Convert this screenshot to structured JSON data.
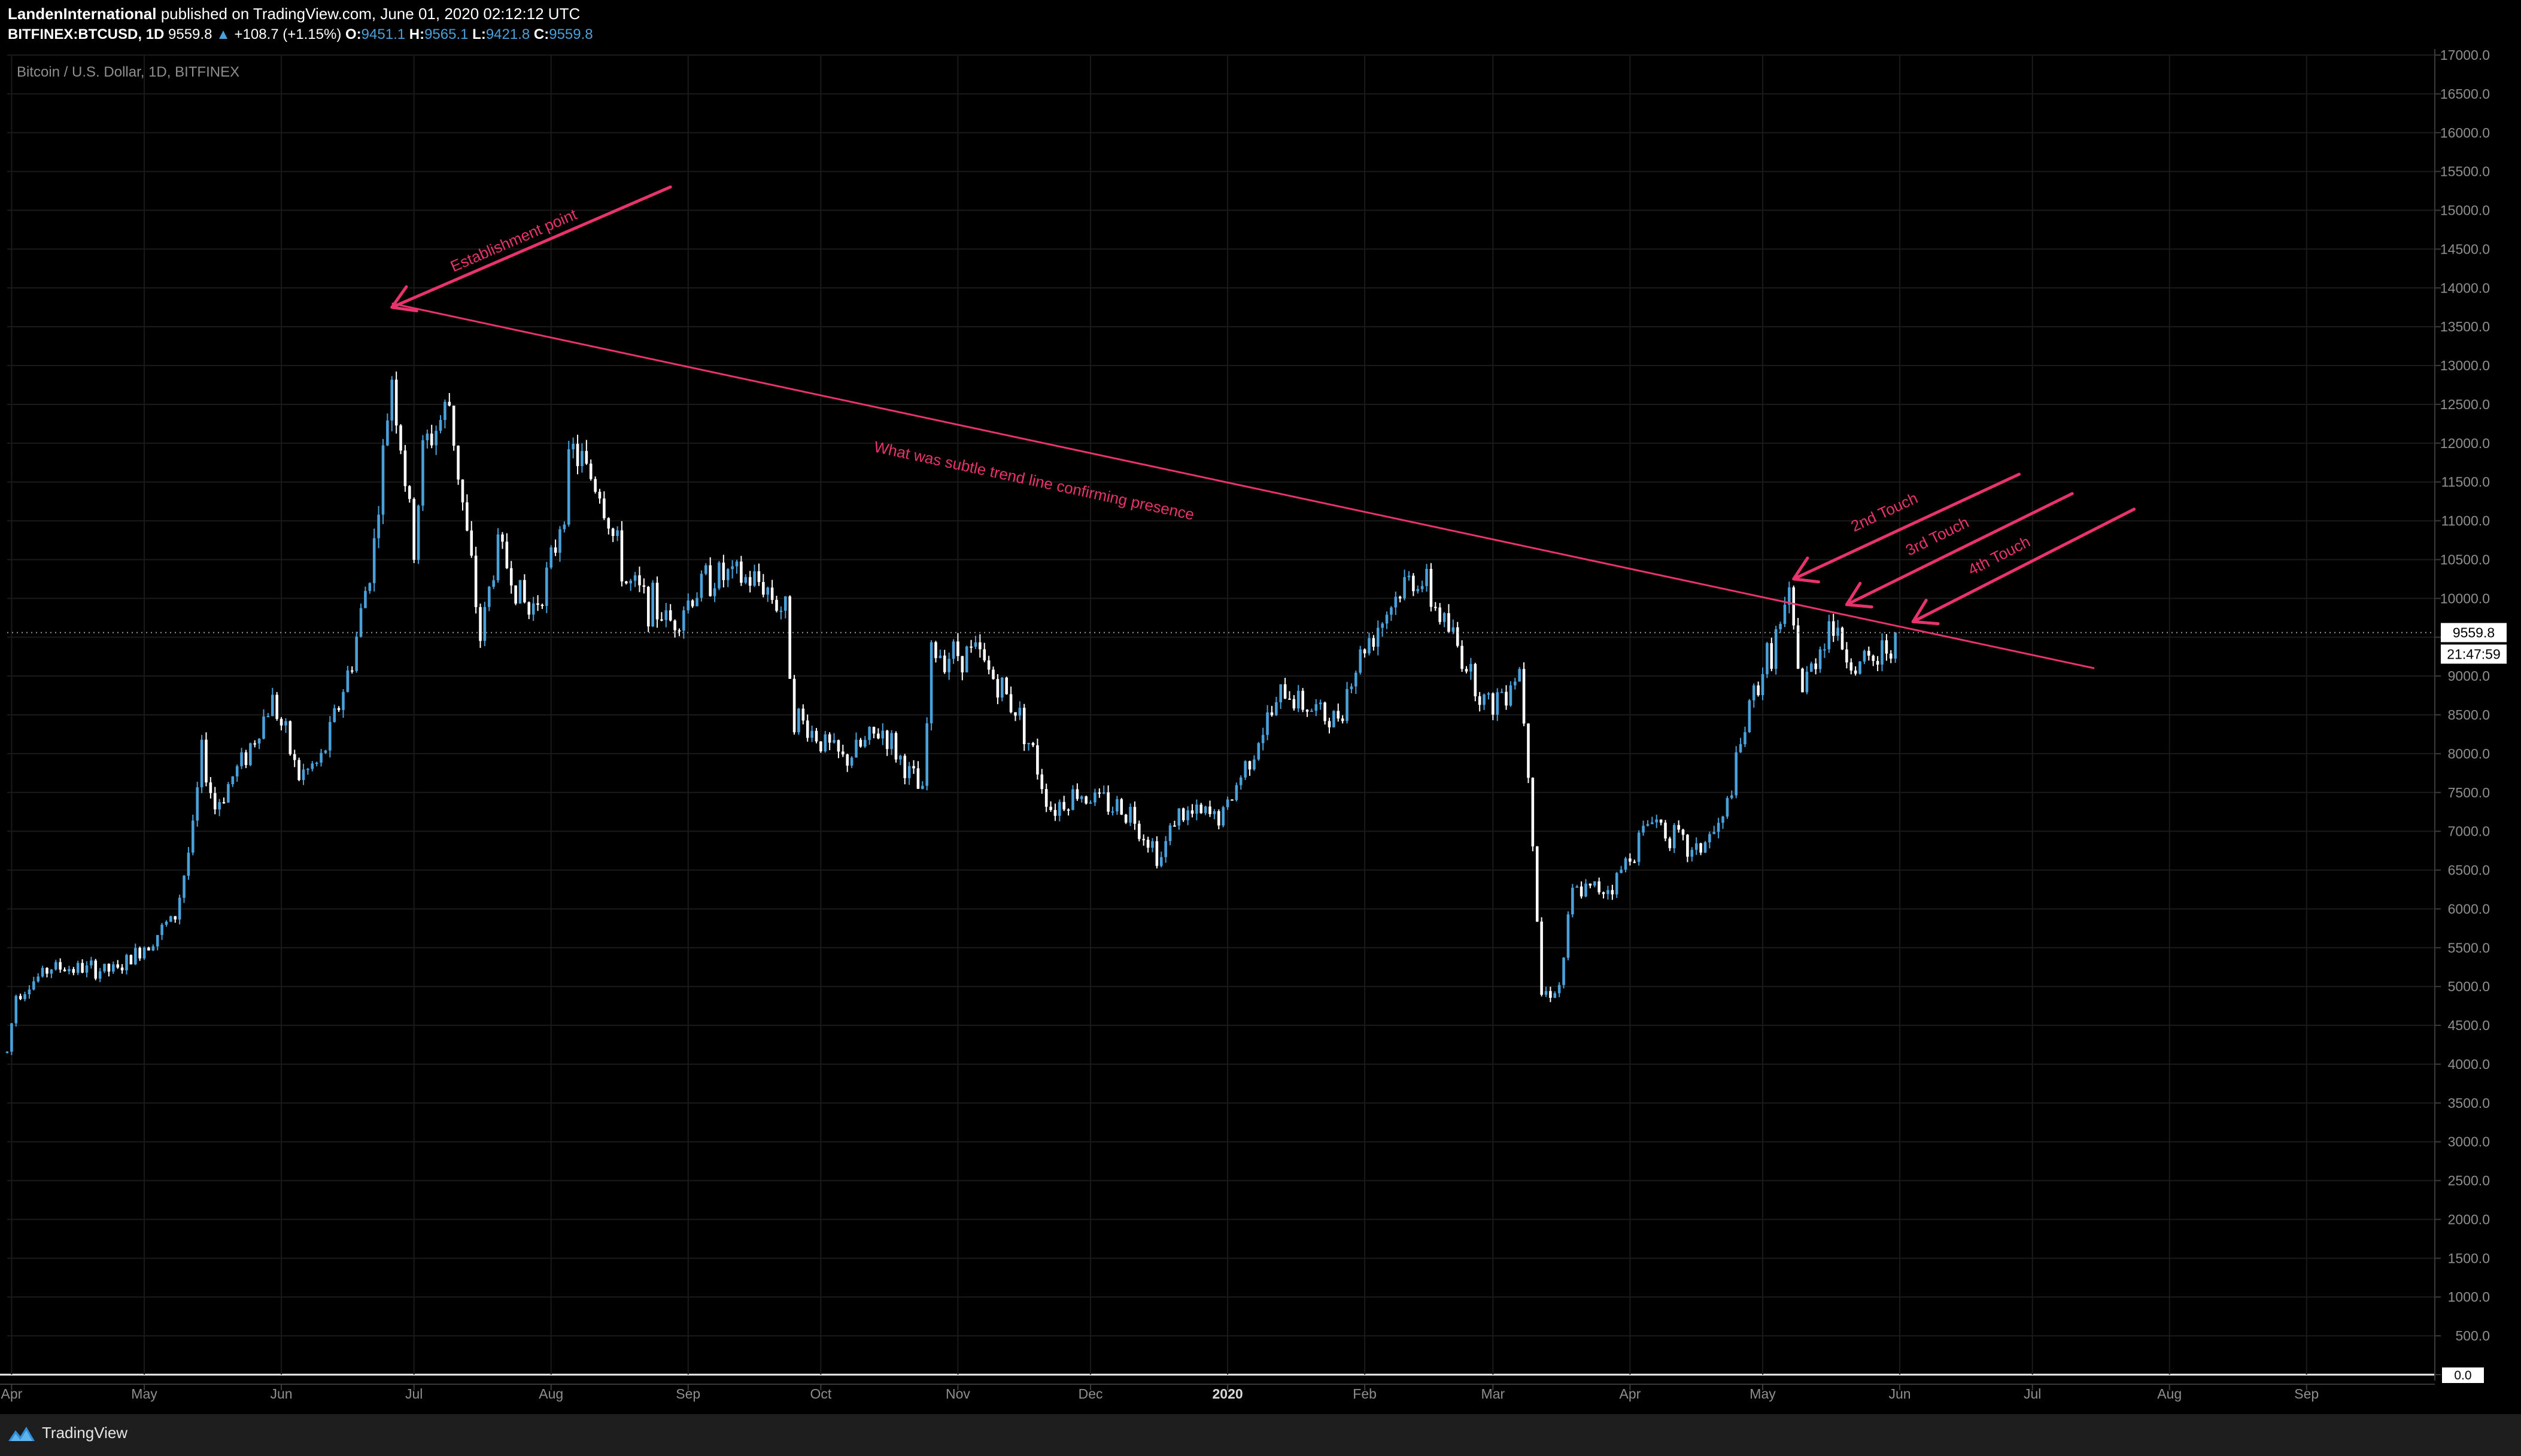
{
  "header": {
    "author": "LandenInternational",
    "published_text": "published on TradingView.com, June 01, 2020 02:12:12 UTC",
    "symbol": "BITFINEX:BTCUSD, 1D",
    "last_price": "9559.8",
    "change": "+108.7 (+1.15%)",
    "o_label": "O:",
    "o_value": "9451.1",
    "h_label": "H:",
    "h_value": "9565.1",
    "l_label": "L:",
    "l_value": "9421.8",
    "c_label": "C:",
    "c_value": "9559.8"
  },
  "footer": {
    "brand": "TradingView",
    "logo_icon": "tradingview-logo-icon"
  },
  "colors": {
    "background": "#000000",
    "candle_up": "#4aa0d8",
    "candle_down": "#ffffff",
    "annotation": "#e8336d",
    "grid": "#1a1a1a",
    "axis_text": "#8f8f8f"
  },
  "chart_data": {
    "type": "candlestick",
    "title": "Bitcoin / U.S. Dollar, 1D, BITFINEX",
    "xlabel": "",
    "ylabel": "",
    "ylim": [
      0,
      17000
    ],
    "y_ticks": [
      "0.0",
      "500.0",
      "1000.0",
      "1500.0",
      "2000.0",
      "2500.0",
      "3000.0",
      "3500.0",
      "4000.0",
      "4500.0",
      "5000.0",
      "5500.0",
      "6000.0",
      "6500.0",
      "7000.0",
      "7500.0",
      "8000.0",
      "8500.0",
      "9000.0",
      "9500.0",
      "10000.0",
      "10500.0",
      "11000.0",
      "11500.0",
      "12000.0",
      "12500.0",
      "13000.0",
      "13500.0",
      "14000.0",
      "14500.0",
      "15000.0",
      "15500.0",
      "16000.0",
      "16500.0",
      "17000.0"
    ],
    "x_range": [
      "2019-03-31",
      "2020-09-30"
    ],
    "x_ticks": [
      {
        "date": "2019-04-01",
        "label": "Apr"
      },
      {
        "date": "2019-05-01",
        "label": "May"
      },
      {
        "date": "2019-06-01",
        "label": "Jun"
      },
      {
        "date": "2019-07-01",
        "label": "Jul"
      },
      {
        "date": "2019-08-01",
        "label": "Aug"
      },
      {
        "date": "2019-09-01",
        "label": "Sep"
      },
      {
        "date": "2019-10-01",
        "label": "Oct"
      },
      {
        "date": "2019-11-01",
        "label": "Nov"
      },
      {
        "date": "2019-12-01",
        "label": "Dec"
      },
      {
        "date": "2020-01-01",
        "label": "2020",
        "bold": true
      },
      {
        "date": "2020-02-01",
        "label": "Feb"
      },
      {
        "date": "2020-03-01",
        "label": "Mar"
      },
      {
        "date": "2020-04-01",
        "label": "Apr"
      },
      {
        "date": "2020-05-01",
        "label": "May"
      },
      {
        "date": "2020-06-01",
        "label": "Jun"
      },
      {
        "date": "2020-07-01",
        "label": "Jul"
      },
      {
        "date": "2020-08-01",
        "label": "Aug"
      },
      {
        "date": "2020-09-01",
        "label": "Sep"
      }
    ],
    "price_path": [
      {
        "date": "2019-03-31",
        "close": 4150
      },
      {
        "date": "2019-04-02",
        "close": 4900
      },
      {
        "date": "2019-04-10",
        "close": 5250
      },
      {
        "date": "2019-04-25",
        "close": 5200
      },
      {
        "date": "2019-05-08",
        "close": 5900
      },
      {
        "date": "2019-05-12",
        "close": 7000
      },
      {
        "date": "2019-05-14",
        "close": 8000
      },
      {
        "date": "2019-05-17",
        "close": 7300
      },
      {
        "date": "2019-05-25",
        "close": 8100
      },
      {
        "date": "2019-05-30",
        "close": 8700
      },
      {
        "date": "2019-06-05",
        "close": 7700
      },
      {
        "date": "2019-06-10",
        "close": 7900
      },
      {
        "date": "2019-06-17",
        "close": 9200
      },
      {
        "date": "2019-06-22",
        "close": 10700
      },
      {
        "date": "2019-06-26",
        "close": 12900
      },
      {
        "date": "2019-07-01",
        "close": 10600
      },
      {
        "date": "2019-07-03",
        "close": 11900
      },
      {
        "date": "2019-07-09",
        "close": 12500
      },
      {
        "date": "2019-07-16",
        "close": 9500
      },
      {
        "date": "2019-07-20",
        "close": 10700
      },
      {
        "date": "2019-07-27",
        "close": 9800
      },
      {
        "date": "2019-08-01",
        "close": 10400
      },
      {
        "date": "2019-08-06",
        "close": 11900
      },
      {
        "date": "2019-08-12",
        "close": 11400
      },
      {
        "date": "2019-08-18",
        "close": 10200
      },
      {
        "date": "2019-08-28",
        "close": 9700
      },
      {
        "date": "2019-09-06",
        "close": 10300
      },
      {
        "date": "2019-09-18",
        "close": 10200
      },
      {
        "date": "2019-09-23",
        "close": 9800
      },
      {
        "date": "2019-09-25",
        "close": 8500
      },
      {
        "date": "2019-10-06",
        "close": 7900
      },
      {
        "date": "2019-10-15",
        "close": 8300
      },
      {
        "date": "2019-10-24",
        "close": 7450
      },
      {
        "date": "2019-10-26",
        "close": 9300
      },
      {
        "date": "2019-11-05",
        "close": 9300
      },
      {
        "date": "2019-11-15",
        "close": 8500
      },
      {
        "date": "2019-11-22",
        "close": 7300
      },
      {
        "date": "2019-11-28",
        "close": 7500
      },
      {
        "date": "2019-12-10",
        "close": 7250
      },
      {
        "date": "2019-12-17",
        "close": 6650
      },
      {
        "date": "2019-12-20",
        "close": 7200
      },
      {
        "date": "2019-12-31",
        "close": 7200
      },
      {
        "date": "2020-01-07",
        "close": 8100
      },
      {
        "date": "2020-01-14",
        "close": 8800
      },
      {
        "date": "2020-01-25",
        "close": 8400
      },
      {
        "date": "2020-02-01",
        "close": 9400
      },
      {
        "date": "2020-02-09",
        "close": 10100
      },
      {
        "date": "2020-02-13",
        "close": 10300
      },
      {
        "date": "2020-02-20",
        "close": 9600
      },
      {
        "date": "2020-02-29",
        "close": 8600
      },
      {
        "date": "2020-03-07",
        "close": 9100
      },
      {
        "date": "2020-03-09",
        "close": 7900
      },
      {
        "date": "2020-03-12",
        "close": 4900
      },
      {
        "date": "2020-03-16",
        "close": 5000
      },
      {
        "date": "2020-03-19",
        "close": 6200
      },
      {
        "date": "2020-03-28",
        "close": 6300
      },
      {
        "date": "2020-04-06",
        "close": 7200
      },
      {
        "date": "2020-04-15",
        "close": 6700
      },
      {
        "date": "2020-04-22",
        "close": 7100
      },
      {
        "date": "2020-04-29",
        "close": 8800
      },
      {
        "date": "2020-05-07",
        "close": 9900
      },
      {
        "date": "2020-05-10",
        "close": 8800
      },
      {
        "date": "2020-05-16",
        "close": 9700
      },
      {
        "date": "2020-05-22",
        "close": 9100
      },
      {
        "date": "2020-05-27",
        "close": 9200
      },
      {
        "date": "2020-05-31",
        "close": 9560
      }
    ],
    "trend_line": {
      "start": {
        "date": "2019-06-26",
        "price": 13800
      },
      "end": {
        "date": "2020-07-15",
        "price": 9100
      }
    },
    "annotations": [
      {
        "text": "Establishment point",
        "arrow_to": {
          "date": "2019-06-26",
          "price": 13750
        },
        "arrow_from": {
          "date": "2019-08-28",
          "price": 15300
        },
        "text_at": {
          "date": "2019-07-24",
          "price": 14550
        }
      },
      {
        "text": "What was subtle trend line confirming presence",
        "text_at": {
          "date": "2019-11-18",
          "price": 11450
        }
      },
      {
        "text": "2nd Touch",
        "arrow_to": {
          "date": "2020-05-08",
          "price": 10250
        },
        "arrow_from": {
          "date": "2020-06-28",
          "price": 11600
        },
        "text_at": {
          "date": "2020-05-29",
          "price": 11050
        }
      },
      {
        "text": "3rd Touch",
        "arrow_to": {
          "date": "2020-05-20",
          "price": 9920
        },
        "arrow_from": {
          "date": "2020-07-10",
          "price": 11350
        },
        "text_at": {
          "date": "2020-06-10",
          "price": 10740
        }
      },
      {
        "text": "4th Touch",
        "arrow_to": {
          "date": "2020-06-04",
          "price": 9700
        },
        "arrow_from": {
          "date": "2020-07-24",
          "price": 11150
        },
        "text_at": {
          "date": "2020-06-24",
          "price": 10490
        }
      }
    ],
    "last_price_label": "9559.8",
    "countdown_label": "21:47:59",
    "zero_label": "0.0",
    "grid": true
  }
}
